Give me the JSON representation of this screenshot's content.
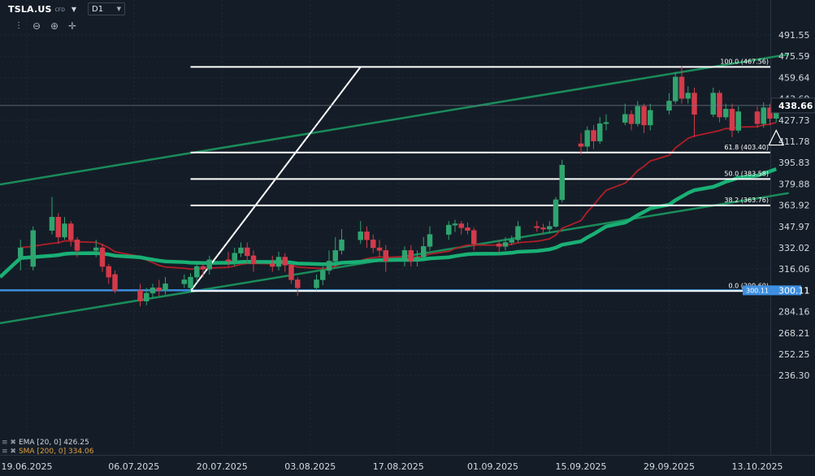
{
  "header": {
    "symbol": "TSLA.US",
    "instrument_type": "CFD",
    "timeframe": "D1"
  },
  "toolbar": {
    "icons": [
      "indicators-icon",
      "zoom-out-icon",
      "zoom-in-icon",
      "crosshair-icon"
    ]
  },
  "legend": {
    "ema": "EMA [20, 0] 426.25",
    "sma": "SMA [200, 0] 334.06"
  },
  "colors": {
    "up": "#2fa46f",
    "down": "#d33a4a",
    "ema": "#b01e28",
    "sma": "#19b075",
    "trend": "#1a8c5a",
    "fib": "#ffffff",
    "support": "#3d8fe0",
    "price_tag": "#0e1620"
  },
  "chart_data": {
    "type": "candlestick",
    "y_ticks": [
      "491.55",
      "475.59",
      "459.64",
      "443.69",
      "427.73",
      "411.78",
      "395.83",
      "379.88",
      "363.92",
      "347.97",
      "332.02",
      "316.06",
      "300.11",
      "284.16",
      "268.21",
      "252.25",
      "236.30"
    ],
    "x_ticks": [
      "19.06.2025",
      "06.07.2025",
      "20.07.2025",
      "03.08.2025",
      "17.08.2025",
      "01.09.2025",
      "15.09.2025",
      "29.09.2025",
      "13.10.2025"
    ],
    "ylim": [
      232,
      505
    ],
    "current_price": "438.66",
    "support_label": "300.11",
    "fibonacci": [
      {
        "label": "100.0 (467.56)",
        "value": 467.56
      },
      {
        "label": "61.8 (403.40)",
        "value": 403.4
      },
      {
        "label": "50.0 (383.58)",
        "value": 383.58
      },
      {
        "label": "38.2 (363.76)",
        "value": 363.76
      },
      {
        "label": "0.0 (299.60)",
        "value": 299.6
      }
    ],
    "fib_swing": {
      "low_date": "15.07.2025",
      "high_date": "11.08.2025"
    },
    "trend_upper": [
      {
        "date": "18.06.2025",
        "value": 382
      },
      {
        "date": "18.10.2025",
        "value": 477
      }
    ],
    "trend_lower": [
      {
        "date": "18.06.2025",
        "value": 278
      },
      {
        "date": "18.10.2025",
        "value": 373
      }
    ],
    "candles": [
      [
        "18.06.2025",
        325,
        332,
        338,
        315
      ],
      [
        "20.06.2025",
        318,
        345,
        348,
        315
      ],
      [
        "23.06.2025",
        345,
        355,
        370,
        342
      ],
      [
        "24.06.2025",
        355,
        340,
        358,
        335
      ],
      [
        "25.06.2025",
        340,
        350,
        355,
        338
      ],
      [
        "26.06.2025",
        350,
        338,
        352,
        333
      ],
      [
        "27.06.2025",
        338,
        330,
        340,
        325
      ],
      [
        "30.06.2025",
        330,
        332,
        338,
        325
      ],
      [
        "01.07.2025",
        332,
        318,
        335,
        314
      ],
      [
        "02.07.2025",
        318,
        310,
        320,
        305
      ],
      [
        "03.07.2025",
        312,
        300,
        315,
        298
      ],
      [
        "07.07.2025",
        300,
        292,
        305,
        288
      ],
      [
        "08.07.2025",
        292,
        298,
        302,
        289
      ],
      [
        "09.07.2025",
        298,
        302,
        305,
        294
      ],
      [
        "10.07.2025",
        302,
        300,
        308,
        296
      ],
      [
        "11.07.2025",
        300,
        305,
        310,
        297
      ],
      [
        "14.07.2025",
        305,
        308,
        312,
        302
      ],
      [
        "15.07.2025",
        302,
        310,
        313,
        299
      ],
      [
        "16.07.2025",
        310,
        318,
        322,
        306
      ],
      [
        "17.07.2025",
        318,
        316,
        320,
        310
      ],
      [
        "18.07.2025",
        316,
        323,
        326,
        312
      ],
      [
        "21.07.2025",
        323,
        322,
        329,
        318
      ],
      [
        "22.07.2025",
        322,
        328,
        332,
        318
      ],
      [
        "23.07.2025",
        328,
        332,
        336,
        325
      ],
      [
        "24.07.2025",
        332,
        326,
        336,
        320
      ],
      [
        "25.07.2025",
        326,
        320,
        330,
        314
      ],
      [
        "28.07.2025",
        320,
        318,
        326,
        314
      ],
      [
        "29.07.2025",
        318,
        325,
        329,
        315
      ],
      [
        "30.07.2025",
        325,
        319,
        328,
        314
      ],
      [
        "31.07.2025",
        319,
        308,
        321,
        305
      ],
      [
        "01.08.2025",
        308,
        302,
        310,
        296
      ],
      [
        "04.08.2025",
        302,
        308,
        312,
        300
      ],
      [
        "05.08.2025",
        308,
        315,
        318,
        304
      ],
      [
        "06.08.2025",
        315,
        322,
        330,
        312
      ],
      [
        "07.08.2025",
        322,
        330,
        340,
        318
      ],
      [
        "08.08.2025",
        330,
        338,
        346,
        327
      ],
      [
        "11.08.2025",
        338,
        344,
        352,
        335
      ],
      [
        "12.08.2025",
        344,
        338,
        348,
        332
      ],
      [
        "13.08.2025",
        338,
        332,
        342,
        328
      ],
      [
        "14.08.2025",
        332,
        330,
        338,
        325
      ],
      [
        "15.08.2025",
        330,
        322,
        334,
        314
      ],
      [
        "18.08.2025",
        322,
        330,
        333,
        318
      ],
      [
        "19.08.2025",
        330,
        322,
        334,
        318
      ],
      [
        "20.08.2025",
        322,
        325,
        330,
        318
      ],
      [
        "21.08.2025",
        325,
        333,
        340,
        322
      ],
      [
        "22.08.2025",
        333,
        342,
        348,
        330
      ],
      [
        "25.08.2025",
        342,
        349,
        352,
        338
      ],
      [
        "26.08.2025",
        349,
        350,
        353,
        344
      ],
      [
        "27.08.2025",
        350,
        347,
        352,
        342
      ],
      [
        "28.08.2025",
        347,
        345,
        351,
        342
      ],
      [
        "29.08.2025",
        345,
        335,
        347,
        330
      ],
      [
        "02.09.2025",
        335,
        333,
        338,
        328
      ],
      [
        "03.09.2025",
        333,
        336,
        340,
        330
      ],
      [
        "04.09.2025",
        336,
        338,
        341,
        334
      ],
      [
        "05.09.2025",
        338,
        348,
        352,
        336
      ],
      [
        "08.09.2025",
        348,
        347,
        352,
        344
      ],
      [
        "09.09.2025",
        347,
        346,
        350,
        342
      ],
      [
        "10.09.2025",
        346,
        348,
        352,
        343
      ],
      [
        "11.09.2025",
        348,
        368,
        370,
        347
      ],
      [
        "12.09.2025",
        368,
        394,
        398,
        366
      ],
      [
        "15.09.2025",
        410,
        408,
        418,
        402
      ],
      [
        "16.09.2025",
        408,
        420,
        423,
        404
      ],
      [
        "17.09.2025",
        420,
        412,
        424,
        406
      ],
      [
        "18.09.2025",
        412,
        425,
        430,
        410
      ],
      [
        "19.09.2025",
        425,
        426,
        432,
        420
      ],
      [
        "22.09.2025",
        426,
        432,
        440,
        424
      ],
      [
        "23.09.2025",
        432,
        425,
        435,
        420
      ],
      [
        "24.09.2025",
        425,
        438,
        442,
        423
      ],
      [
        "25.09.2025",
        438,
        424,
        440,
        418
      ],
      [
        "26.09.2025",
        424,
        435,
        440,
        420
      ],
      [
        "29.09.2025",
        435,
        442,
        448,
        432
      ],
      [
        "30.09.2025",
        442,
        460,
        464,
        440
      ],
      [
        "01.10.2025",
        460,
        444,
        468,
        440
      ],
      [
        "02.10.2025",
        444,
        448,
        453,
        440
      ],
      [
        "03.10.2025",
        448,
        432,
        452,
        415
      ],
      [
        "06.10.2025",
        432,
        448,
        452,
        430
      ],
      [
        "07.10.2025",
        448,
        430,
        450,
        426
      ],
      [
        "08.10.2025",
        430,
        436,
        440,
        428
      ],
      [
        "09.10.2025",
        436,
        420,
        440,
        415
      ],
      [
        "10.10.2025",
        420,
        434,
        438,
        418
      ],
      [
        "13.10.2025",
        434,
        425,
        438,
        422
      ],
      [
        "14.10.2025",
        425,
        437,
        441,
        422
      ],
      [
        "15.10.2025",
        437,
        429,
        440,
        424
      ],
      [
        "16.10.2025",
        429,
        439,
        441,
        426
      ]
    ]
  }
}
